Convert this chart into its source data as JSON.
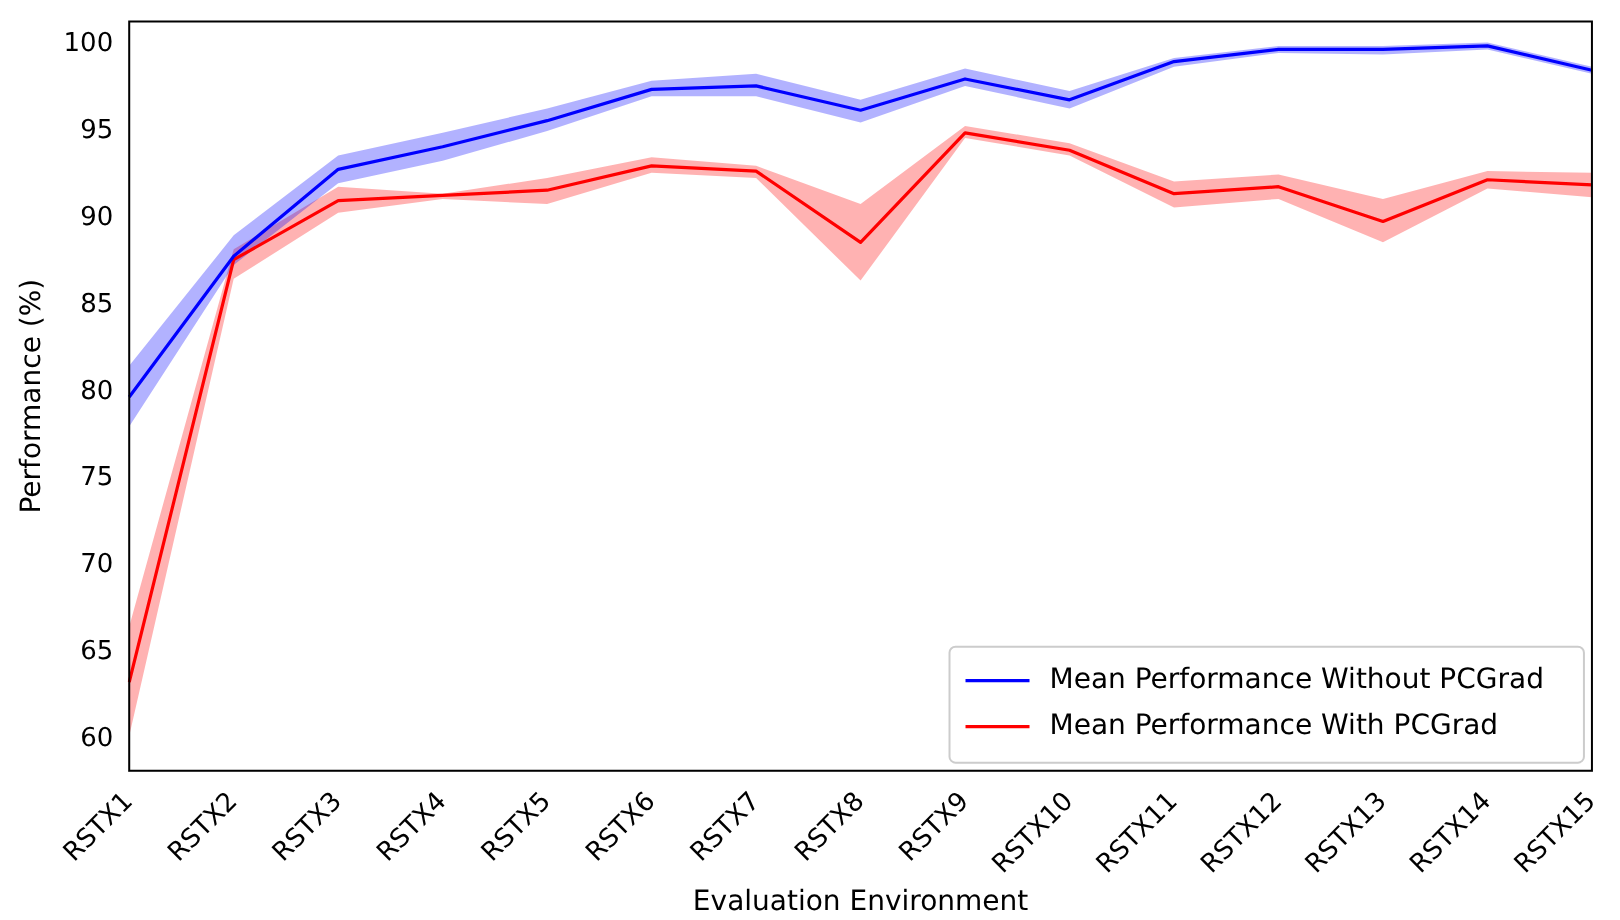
{
  "chart_data": {
    "type": "line",
    "xlabel": "Evaluation Environment",
    "ylabel": "Performance (%)",
    "categories": [
      "RSTX1",
      "RSTX2",
      "RSTX3",
      "RSTX4",
      "RSTX5",
      "RSTX6",
      "RSTX7",
      "RSTX8",
      "RSTX9",
      "RSTX10",
      "RSTX11",
      "RSTX12",
      "RSTX13",
      "RSTX14",
      "RSTX15"
    ],
    "series": [
      {
        "name": "Mean Performance Without PCGrad",
        "color": "#0000ff",
        "values": [
          79.7,
          87.8,
          92.8,
          94.1,
          95.6,
          97.4,
          97.6,
          96.2,
          98.0,
          96.8,
          99.0,
          99.7,
          99.7,
          99.9,
          98.5
        ],
        "lower": [
          78.0,
          87.3,
          92.0,
          93.3,
          95.0,
          97.0,
          97.0,
          95.5,
          97.6,
          96.3,
          98.7,
          99.5,
          99.4,
          99.7,
          98.3
        ],
        "upper": [
          81.5,
          89.0,
          93.6,
          94.9,
          96.3,
          97.9,
          98.3,
          96.8,
          98.6,
          97.3,
          99.2,
          99.9,
          99.9,
          100.1,
          98.7
        ]
      },
      {
        "name": "Mean Performance With PCGrad",
        "color": "#ff0000",
        "values": [
          63.3,
          87.6,
          91.0,
          91.3,
          91.6,
          93.0,
          92.7,
          88.6,
          94.9,
          93.9,
          91.4,
          91.8,
          89.8,
          92.2,
          91.9
        ],
        "lower": [
          60.2,
          86.5,
          90.3,
          91.1,
          90.8,
          92.6,
          92.3,
          86.4,
          94.6,
          93.6,
          90.6,
          91.1,
          88.6,
          91.7,
          91.2
        ],
        "upper": [
          66.5,
          88.2,
          91.8,
          91.4,
          92.3,
          93.5,
          93.0,
          90.8,
          95.3,
          94.3,
          92.1,
          92.5,
          91.1,
          92.7,
          92.6
        ]
      }
    ],
    "ylim": [
      58.2,
      101.3
    ],
    "yticks": [
      60,
      65,
      70,
      75,
      80,
      85,
      90,
      95,
      100
    ],
    "grid": false,
    "legend": "bottom right",
    "marker": "none",
    "line_style": "solid"
  }
}
